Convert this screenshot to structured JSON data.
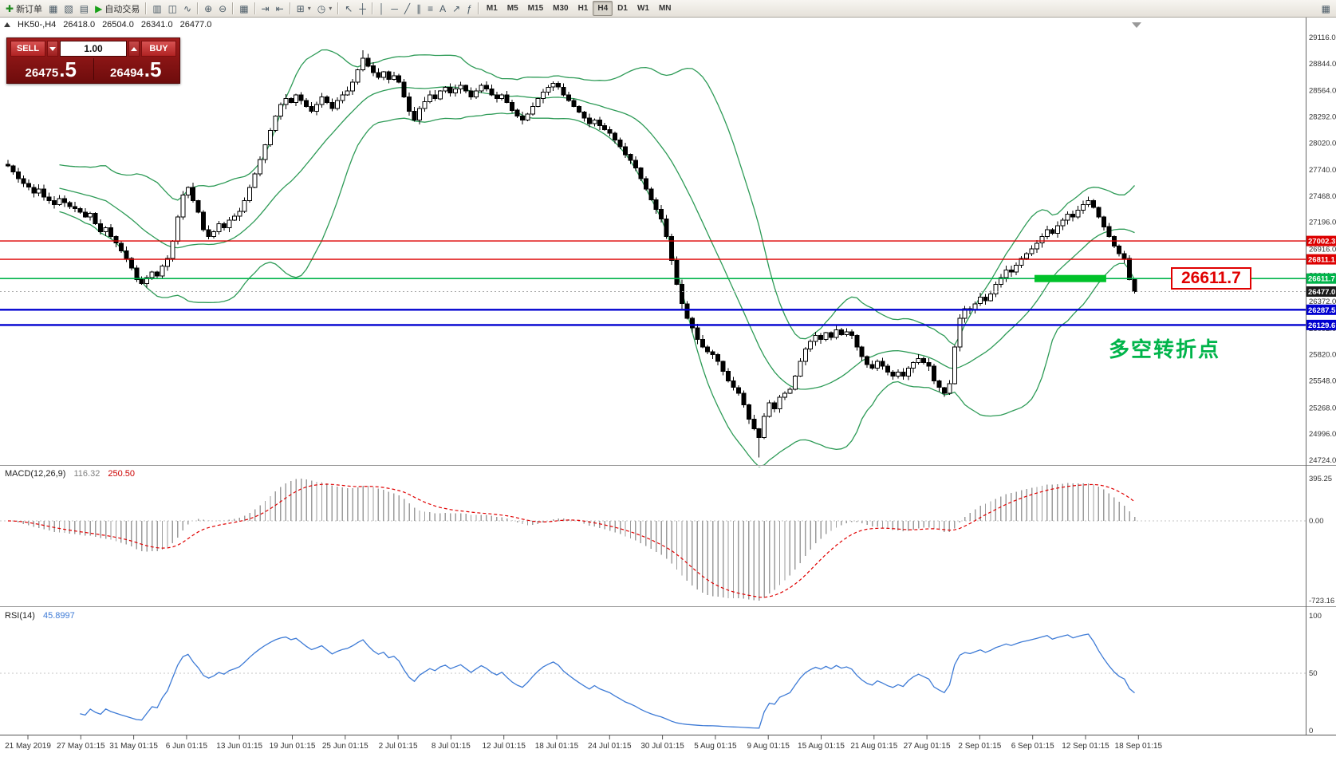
{
  "toolbar": {
    "buttons": [
      {
        "name": "new-order",
        "icon": "plus",
        "label": "新订单",
        "color": "#1f8a1f"
      },
      {
        "name": "chart-window",
        "icon": "chart"
      },
      {
        "name": "profiles",
        "icon": "layers"
      },
      {
        "name": "data-window",
        "icon": "watch"
      },
      {
        "name": "auto-trading",
        "icon": "play",
        "label": "自动交易",
        "color": "#18a018"
      },
      {
        "sep": true
      },
      {
        "name": "bar-chart-mode",
        "icon": "bars"
      },
      {
        "name": "candlestick-mode",
        "icon": "candles"
      },
      {
        "name": "line-chart-mode",
        "icon": "line"
      },
      {
        "sep": true
      },
      {
        "name": "zoom-in",
        "icon": "zoom-in"
      },
      {
        "name": "zoom-out",
        "icon": "zoom-out"
      },
      {
        "sep": true
      },
      {
        "name": "tile-windows",
        "icon": "grid"
      },
      {
        "sep": true
      },
      {
        "name": "auto-scroll",
        "icon": "scroll-end"
      },
      {
        "name": "chart-shift",
        "icon": "shift"
      },
      {
        "sep": true
      },
      {
        "name": "new-chart",
        "icon": "new-chart",
        "dropdown": true
      },
      {
        "name": "templates",
        "icon": "clock",
        "dropdown": true
      },
      {
        "sep": true
      },
      {
        "name": "cursor",
        "icon": "cursor"
      },
      {
        "name": "crosshair",
        "icon": "crosshair"
      },
      {
        "sep": true
      },
      {
        "name": "vertical-line",
        "icon": "vline"
      },
      {
        "name": "horizontal-line",
        "icon": "hline"
      },
      {
        "name": "trend-line",
        "icon": "trend"
      },
      {
        "name": "equidistant-channel",
        "icon": "channel"
      },
      {
        "name": "fibonacci",
        "icon": "fibo"
      },
      {
        "name": "text-label",
        "icon": "text"
      },
      {
        "name": "arrows",
        "icon": "arrow"
      },
      {
        "name": "indicators",
        "icon": "func"
      },
      {
        "sep": true
      }
    ],
    "timeframes": [
      "M1",
      "M5",
      "M15",
      "M30",
      "H1",
      "H4",
      "D1",
      "W1",
      "MN"
    ],
    "active_timeframe": "H4",
    "right_icon": {
      "name": "chart-list",
      "icon": "panel"
    }
  },
  "chart_header": {
    "symbol": "HK50-,H4",
    "open": "26418.0",
    "high": "26504.0",
    "low": "26341.0",
    "close": "26477.0"
  },
  "one_click": {
    "sell_label": "SELL",
    "buy_label": "BUY",
    "volume": "1.00",
    "sell_price_main": "26475",
    "sell_price_pips": ".5",
    "buy_price_main": "26494",
    "buy_price_pips": ".5"
  },
  "price_axis": [
    "29116.0",
    "28844.0",
    "28564.0",
    "28292.0",
    "28020.0",
    "27740.0",
    "27468.0",
    "27196.0",
    "26916.0",
    "26644.0",
    "26372.0",
    "26092.0",
    "25820.0",
    "25548.0",
    "25268.0",
    "24996.0",
    "24724.0"
  ],
  "date_axis": [
    "21 May 2019",
    "27 May 01:15",
    "31 May 01:15",
    "6 Jun 01:15",
    "13 Jun 01:15",
    "19 Jun 01:15",
    "25 Jun 01:15",
    "2 Jul 01:15",
    "8 Jul 01:15",
    "12 Jul 01:15",
    "18 Jul 01:15",
    "24 Jul 01:15",
    "30 Jul 01:15",
    "5 Aug 01:15",
    "9 Aug 01:15",
    "15 Aug 01:15",
    "21 Aug 01:15",
    "27 Aug 01:15",
    "2 Sep 01:15",
    "6 Sep 01:15",
    "12 Sep 01:15",
    "18 Sep 01:15"
  ],
  "hlines": [
    {
      "name": "resistance-line-upper",
      "price": 27002.3,
      "label": "27002.3",
      "color": "#dd0000",
      "width": 1.4,
      "badge": "#dd0000"
    },
    {
      "name": "resistance-line-lower",
      "price": 26811.1,
      "label": "26811.1",
      "color": "#dd0000",
      "width": 1.4,
      "badge": "#dd0000"
    },
    {
      "name": "pivot-line",
      "price": 26611.7,
      "label": "26611.7",
      "color": "#00b44a",
      "width": 1.6,
      "badge": "#00b44a"
    },
    {
      "name": "current-price-line",
      "price": 26477.0,
      "label": "26477.0",
      "color": "#aaaaaa",
      "width": 1,
      "dash": "2,3",
      "badge": "#1a1a1a"
    },
    {
      "name": "support-line-upper",
      "price": 26287.5,
      "label": "26287.5",
      "color": "#0000d0",
      "width": 2.4,
      "badge": "#0000d0"
    },
    {
      "name": "support-line-lower",
      "price": 26129.6,
      "label": "26129.6",
      "color": "#0000d0",
      "width": 2.4,
      "badge": "#0000d0"
    }
  ],
  "highlight_rect": {
    "price": 26611.7,
    "start_index": 200,
    "end_index": 213,
    "color": "#00c22a"
  },
  "annotations": {
    "price_label": "26611.7",
    "turning_point": "多空转折点"
  },
  "macd": {
    "label": "MACD(12,26,9)",
    "value_main": "116.32",
    "value_signal": "250.50",
    "axis": [
      "395.25",
      "0.00",
      "-723.16"
    ]
  },
  "rsi": {
    "label": "RSI(14)",
    "value": "45.8997",
    "axis": [
      "100",
      "50",
      "0"
    ]
  },
  "colors": {
    "band": "#2e9b57",
    "candle_up": "#ffffff",
    "candle_down": "#000000",
    "candle_stroke": "#000000",
    "macd_hist": "#9c9c9c",
    "macd_signal": "#e00000",
    "rsi_line": "#3e7bd6",
    "grid": "#c6c6c6",
    "axis_text": "#333333"
  },
  "chart_data": {
    "type": "candlestick",
    "symbol": "HK50",
    "timeframe": "H4",
    "price_axis_top": 29116.0,
    "price_axis_bottom": 24724.0,
    "first_open": 27800,
    "closes": [
      27780,
      27720,
      27650,
      27600,
      27560,
      27500,
      27540,
      27460,
      27420,
      27380,
      27440,
      27400,
      27360,
      27340,
      27300,
      27250,
      27290,
      27180,
      27100,
      27140,
      27050,
      26980,
      26900,
      26820,
      26720,
      26600,
      26560,
      26620,
      26680,
      26640,
      26740,
      26820,
      27000,
      27250,
      27480,
      27560,
      27420,
      27300,
      27120,
      27050,
      27100,
      27180,
      27140,
      27220,
      27260,
      27310,
      27420,
      27560,
      27700,
      27850,
      28000,
      28150,
      28300,
      28420,
      28480,
      28440,
      28520,
      28460,
      28400,
      28350,
      28420,
      28500,
      28440,
      28380,
      28460,
      28520,
      28560,
      28650,
      28780,
      28900,
      28820,
      28750,
      28700,
      28760,
      28680,
      28720,
      28650,
      28500,
      28350,
      28260,
      28380,
      28450,
      28520,
      28480,
      28560,
      28600,
      28540,
      28580,
      28620,
      28560,
      28500,
      28560,
      28620,
      28580,
      28520,
      28480,
      28520,
      28440,
      28360,
      28300,
      28260,
      28320,
      28400,
      28480,
      28550,
      28600,
      28640,
      28600,
      28520,
      28460,
      28400,
      28340,
      28280,
      28220,
      28260,
      28200,
      28160,
      28120,
      28050,
      27980,
      27900,
      27840,
      27760,
      27650,
      27540,
      27430,
      27330,
      27230,
      27050,
      26800,
      26550,
      26350,
      26200,
      26100,
      25980,
      25900,
      25850,
      25820,
      25750,
      25650,
      25550,
      25480,
      25420,
      25300,
      25150,
      25050,
      24960,
      25180,
      25320,
      25260,
      25380,
      25420,
      25460,
      25600,
      25750,
      25880,
      25960,
      26020,
      25980,
      26050,
      26000,
      26080,
      26030,
      26060,
      26020,
      25900,
      25800,
      25720,
      25680,
      25750,
      25700,
      25640,
      25600,
      25640,
      25600,
      25680,
      25740,
      25780,
      25740,
      25700,
      25550,
      25480,
      25420,
      25520,
      25900,
      26200,
      26300,
      26280,
      26350,
      26420,
      26380,
      26450,
      26550,
      26620,
      26700,
      26680,
      26750,
      26820,
      26870,
      26920,
      26980,
      27050,
      27120,
      27080,
      27160,
      27220,
      27280,
      27250,
      27320,
      27380,
      27420,
      27350,
      27250,
      27150,
      27050,
      26950,
      26870,
      26820,
      26600,
      26477
    ]
  }
}
